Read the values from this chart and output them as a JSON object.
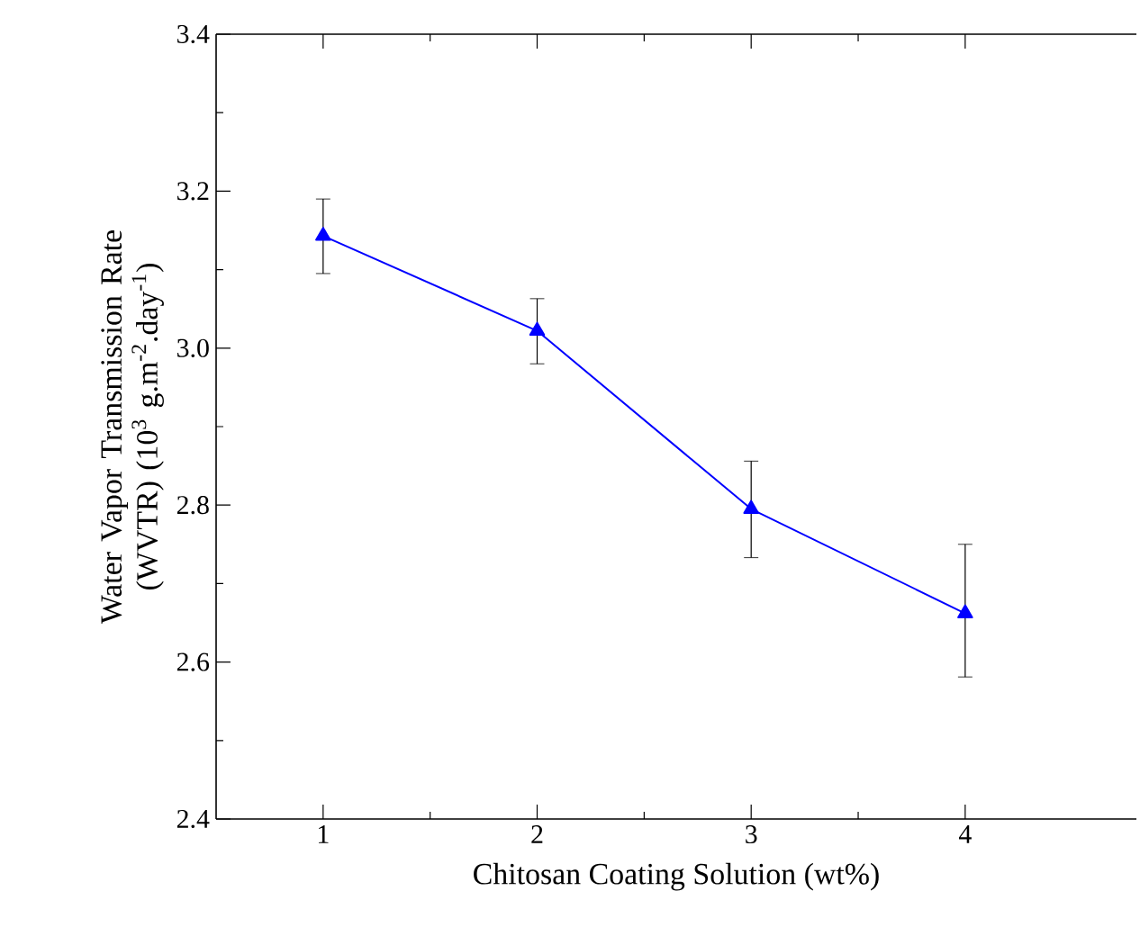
{
  "chart_data": {
    "type": "line",
    "xlabel": "Chitosan Coating Solution (wt%)",
    "ylabel": "Water Vapor Transmission Rate (WVTR) (10$^{3}$ g.m$^{-2}$.day$^{-1}$)",
    "x": [
      1,
      2,
      3,
      4
    ],
    "series": [
      {
        "color": "#0000ff",
        "values": [
          3.143,
          3.022,
          2.795,
          2.662
        ],
        "errors": [
          [
            3.095,
            3.19
          ],
          [
            2.98,
            3.063
          ],
          [
            2.733,
            2.856
          ],
          [
            2.581,
            2.75
          ]
        ]
      }
    ],
    "xlim": [
      0.5,
      4.8
    ],
    "xticks": [
      1,
      2,
      3,
      4
    ],
    "ylim": [
      2.4,
      3.4
    ],
    "yticks": [
      {
        "value": 2.4,
        "label": "2.4"
      },
      {
        "value": 2.6,
        "label": "2.6"
      },
      {
        "value": 2.8,
        "label": "2.8"
      },
      {
        "value": 3.0,
        "label": "3.0"
      },
      {
        "value": 3.2,
        "label": "3.2"
      },
      {
        "value": 3.4,
        "label": "3.4"
      }
    ],
    "marker": "triangle",
    "line_style": "solid"
  }
}
